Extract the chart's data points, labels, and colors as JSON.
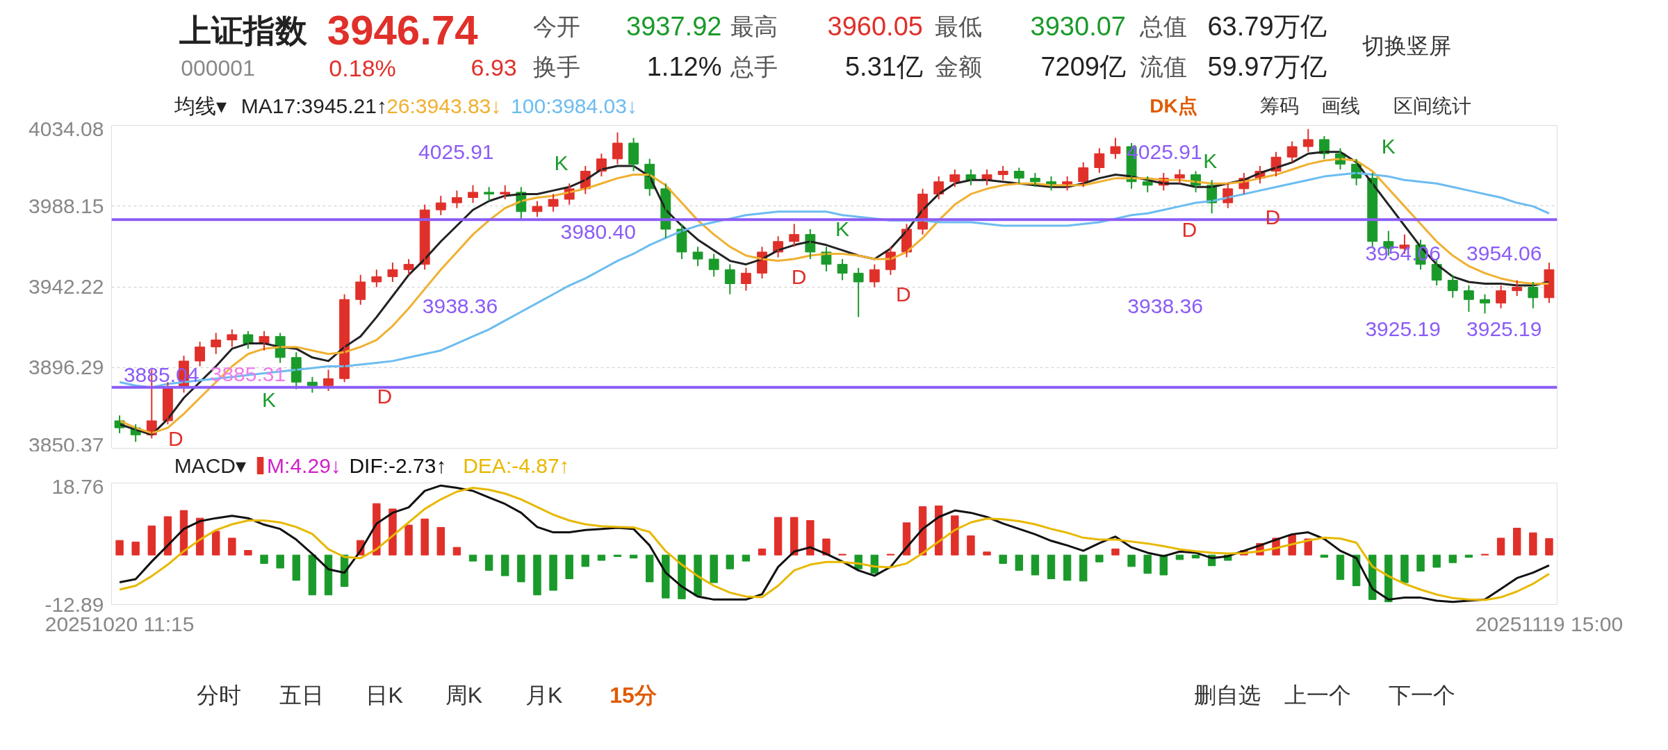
{
  "chart_data": [
    {
      "type": "other",
      "annotations": [
        "上证指数",
        "3946.74",
        "000001",
        "0.18%",
        "6.93",
        "今开",
        "3937.92",
        "最高",
        "3960.05",
        "最低",
        "3930.07",
        "总值",
        "63.79万亿",
        "换手",
        "1.12%",
        "总手",
        "5.31亿",
        "金额",
        "7209亿",
        "流值",
        "59.97万亿",
        "切换竖屏",
        "均线▾",
        "DK点",
        "筹码",
        "画线",
        "区间统计"
      ]
    },
    {
      "type": "candlestick",
      "categories": [
        null,
        null,
        null,
        null,
        null,
        null,
        null,
        null,
        null,
        null,
        null,
        null,
        null,
        null,
        null,
        null,
        null,
        null,
        null,
        null,
        null,
        null,
        null,
        null,
        null,
        null,
        null,
        null,
        null,
        null,
        null,
        null,
        null,
        null,
        null,
        null,
        null,
        null,
        null,
        null,
        null,
        null,
        null,
        null,
        null,
        null,
        null,
        null,
        null,
        null,
        null,
        null,
        null,
        null,
        null,
        null,
        null,
        null,
        null,
        null,
        null,
        null,
        null,
        null,
        null,
        null,
        null,
        null,
        null,
        null,
        null,
        null,
        null,
        null,
        null,
        null,
        null,
        null,
        null,
        null,
        null,
        null,
        null,
        null,
        null,
        null,
        null,
        null,
        null,
        null
      ],
      "ohlc": [
        [
          3866,
          3869,
          3859,
          3862
        ],
        [
          3862,
          3864,
          3854,
          3858
        ],
        [
          3858,
          3895,
          3856,
          3866
        ],
        [
          3866,
          3888,
          3864,
          3885
        ],
        [
          3885,
          3903,
          3882,
          3900
        ],
        [
          3900,
          3911,
          3897,
          3908
        ],
        [
          3908,
          3916,
          3904,
          3912
        ],
        [
          3912,
          3918,
          3908,
          3915
        ],
        [
          3915,
          3917,
          3907,
          3910
        ],
        [
          3910,
          3917,
          3906,
          3914
        ],
        [
          3914,
          3916,
          3899,
          3902
        ],
        [
          3902,
          3905,
          3884,
          3888
        ],
        [
          3888,
          3891,
          3882,
          3886
        ],
        [
          3886,
          3895,
          3883,
          3890
        ],
        [
          3890,
          3938,
          3888,
          3935
        ],
        [
          3935,
          3949,
          3932,
          3945
        ],
        [
          3945,
          3952,
          3942,
          3948
        ],
        [
          3948,
          3956,
          3945,
          3952
        ],
        [
          3952,
          3958,
          3949,
          3955
        ],
        [
          3955,
          3989,
          3952,
          3986
        ],
        [
          3986,
          3994,
          3983,
          3990
        ],
        [
          3990,
          3997,
          3987,
          3993
        ],
        [
          3993,
          4000,
          3990,
          3996
        ],
        [
          3996,
          3999,
          3991,
          3995
        ],
        [
          3995,
          4000,
          3992,
          3996
        ],
        [
          3996,
          3999,
          3980,
          3985
        ],
        [
          3985,
          3991,
          3982,
          3988
        ],
        [
          3988,
          3995,
          3985,
          3992
        ],
        [
          3992,
          4001,
          3989,
          3998
        ],
        [
          3998,
          4011,
          3995,
          4008
        ],
        [
          4008,
          4018,
          4005,
          4015
        ],
        [
          4015,
          4030,
          4012,
          4024
        ],
        [
          4024,
          4027,
          4008,
          4012
        ],
        [
          4012,
          4015,
          3994,
          3998
        ],
        [
          3998,
          4001,
          3970,
          3975
        ],
        [
          3975,
          3978,
          3958,
          3962
        ],
        [
          3962,
          3965,
          3954,
          3958
        ],
        [
          3958,
          3961,
          3948,
          3952
        ],
        [
          3952,
          3955,
          3938,
          3944
        ],
        [
          3944,
          3953,
          3940,
          3950
        ],
        [
          3950,
          3965,
          3947,
          3962
        ],
        [
          3962,
          3971,
          3959,
          3968
        ],
        [
          3968,
          3978,
          3965,
          3972
        ],
        [
          3972,
          3975,
          3958,
          3962
        ],
        [
          3962,
          3965,
          3951,
          3955
        ],
        [
          3955,
          3958,
          3946,
          3950
        ],
        [
          3950,
          3953,
          3925,
          3945
        ],
        [
          3945,
          3955,
          3942,
          3952
        ],
        [
          3952,
          3965,
          3949,
          3962
        ],
        [
          3962,
          3978,
          3959,
          3975
        ],
        [
          3975,
          3998,
          3972,
          3995
        ],
        [
          3995,
          4005,
          3992,
          4002
        ],
        [
          4002,
          4009,
          3999,
          4006
        ],
        [
          4006,
          4009,
          4000,
          4003
        ],
        [
          4003,
          4009,
          4000,
          4006
        ],
        [
          4006,
          4011,
          4003,
          4008
        ],
        [
          4008,
          4010,
          4001,
          4004
        ],
        [
          4004,
          4007,
          3999,
          4002
        ],
        [
          4002,
          4005,
          3997,
          4000
        ],
        [
          4000,
          4005,
          3997,
          4002
        ],
        [
          4002,
          4013,
          3999,
          4010
        ],
        [
          4010,
          4021,
          4007,
          4018
        ],
        [
          4018,
          4027,
          4015,
          4022
        ],
        [
          4022,
          4024,
          3998,
          4002
        ],
        [
          4002,
          4005,
          3996,
          4000
        ],
        [
          4000,
          4007,
          3997,
          4004
        ],
        [
          4004,
          4009,
          4001,
          4006
        ],
        [
          4006,
          4008,
          3996,
          4000
        ],
        [
          4000,
          4003,
          3984,
          3990
        ],
        [
          3990,
          4001,
          3987,
          3998
        ],
        [
          3998,
          4007,
          3995,
          4004
        ],
        [
          4004,
          4011,
          4001,
          4008
        ],
        [
          4008,
          4019,
          4005,
          4016
        ],
        [
          4016,
          4025,
          4013,
          4022
        ],
        [
          4022,
          4032,
          4019,
          4026
        ],
        [
          4026,
          4028,
          4015,
          4018
        ],
        [
          4018,
          4021,
          4009,
          4012
        ],
        [
          4012,
          4015,
          4000,
          4004
        ],
        [
          4004,
          4007,
          3965,
          3968
        ],
        [
          3968,
          3974,
          3960,
          3964
        ],
        [
          3964,
          3972,
          3961,
          3966
        ],
        [
          3966,
          3969,
          3952,
          3955
        ],
        [
          3955,
          3958,
          3943,
          3946
        ],
        [
          3946,
          3949,
          3936,
          3940
        ],
        [
          3940,
          3943,
          3928,
          3935
        ],
        [
          3935,
          3938,
          3927,
          3933
        ],
        [
          3933,
          3943,
          3930,
          3940
        ],
        [
          3940,
          3946,
          3937,
          3942
        ],
        [
          3942,
          3945,
          3930,
          3936
        ],
        [
          3936,
          3956,
          3933,
          3952
        ]
      ],
      "colors": [
        "#1a9a2a",
        "#1a9a2a",
        "#e0302a",
        "#e0302a",
        "#e0302a",
        "#e0302a",
        "#e0302a",
        "#e0302a",
        "#1a9a2a",
        "#e0302a",
        "#1a9a2a",
        "#1a9a2a",
        "#1a9a2a",
        "#e0302a",
        "#e0302a",
        "#e0302a",
        "#e0302a",
        "#e0302a",
        "#e0302a",
        "#e0302a",
        "#e0302a",
        "#e0302a",
        "#e0302a",
        "#1a9a2a",
        "#e0302a",
        "#1a9a2a",
        "#e0302a",
        "#e0302a",
        "#e0302a",
        "#e0302a",
        "#e0302a",
        "#e0302a",
        "#1a9a2a",
        "#1a9a2a",
        "#1a9a2a",
        "#1a9a2a",
        "#1a9a2a",
        "#1a9a2a",
        "#1a9a2a",
        "#e0302a",
        "#e0302a",
        "#e0302a",
        "#e0302a",
        "#1a9a2a",
        "#1a9a2a",
        "#1a9a2a",
        "#1a9a2a",
        "#e0302a",
        "#e0302a",
        "#e0302a",
        "#e0302a",
        "#e0302a",
        "#e0302a",
        "#1a9a2a",
        "#e0302a",
        "#e0302a",
        "#1a9a2a",
        "#1a9a2a",
        "#1a9a2a",
        "#e0302a",
        "#e0302a",
        "#e0302a",
        "#e0302a",
        "#1a9a2a",
        "#1a9a2a",
        "#e0302a",
        "#e0302a",
        "#1a9a2a",
        "#1a9a2a",
        "#e0302a",
        "#e0302a",
        "#e0302a",
        "#e0302a",
        "#e0302a",
        "#e0302a",
        "#1a9a2a",
        "#1a9a2a",
        "#1a9a2a",
        "#1a9a2a",
        "#1a9a2a",
        "#e0302a",
        "#1a9a2a",
        "#1a9a2a",
        "#1a9a2a",
        "#1a9a2a",
        "#1a9a2a",
        "#e0302a",
        "#e0302a",
        "#1a9a2a",
        "#e0302a"
      ],
      "series": [
        {
          "name": "MA17:3945.21↑",
          "type": "line",
          "color": "#222222",
          "values": [
            3864,
            3861,
            3858,
            3867,
            3879,
            3888,
            3897,
            3907,
            3910,
            3910,
            3908,
            3907,
            3902,
            3900,
            3908,
            3914,
            3925,
            3937,
            3949,
            3958,
            3968,
            3977,
            3986,
            3991,
            3994,
            3995,
            3995,
            3997,
            3999,
            4003,
            4009,
            4011,
            4011,
            4005,
            3986,
            3977,
            3969,
            3963,
            3957,
            3955,
            3958,
            3963,
            3966,
            3968,
            3966,
            3963,
            3960,
            3958,
            3964,
            3974,
            3986,
            3995,
            4001,
            4003,
            4003,
            4002,
            4001,
            4000,
            3999,
            3999,
            4001,
            4004,
            4006,
            4005,
            4003,
            4001,
            4001,
            3999,
            3999,
            4001,
            4003,
            4007,
            4010,
            4013,
            4018,
            4019,
            4019,
            4013,
            4001,
            3989,
            3977,
            3965,
            3955,
            3948,
            3945,
            3944,
            3944,
            3943,
            3943,
            3945
          ]
        },
        {
          "name": "26:3943.83↓",
          "type": "line",
          "color": "#f0b030",
          "values": [
            3866,
            3862,
            3859,
            3862,
            3870,
            3879,
            3888,
            3897,
            3904,
            3907,
            3908,
            3908,
            3906,
            3904,
            3905,
            3908,
            3912,
            3920,
            3930,
            3941,
            3952,
            3962,
            3972,
            3980,
            3987,
            3991,
            3993,
            3994,
            3996,
            3998,
            4001,
            4004,
            4006,
            4006,
            4000,
            3990,
            3980,
            3972,
            3965,
            3960,
            3958,
            3957,
            3958,
            3960,
            3961,
            3961,
            3960,
            3958,
            3958,
            3962,
            3970,
            3980,
            3989,
            3995,
            3998,
            4000,
            4001,
            4001,
            4000,
            4000,
            4000,
            4002,
            4004,
            4004,
            4004,
            4003,
            4003,
            4002,
            4001,
            4001,
            4002,
            4004,
            4006,
            4009,
            4012,
            4014,
            4015,
            4014,
            4008,
            3998,
            3988,
            3978,
            3968,
            3960,
            3954,
            3950,
            3947,
            3945,
            3944,
            3944
          ]
        },
        {
          "name": "100:3984.03↓",
          "type": "line",
          "color": "#6cbcf0",
          "values": [
            3888,
            3886,
            3885,
            3887,
            3888,
            3889,
            3890,
            3891,
            3892,
            3893,
            3894,
            3895,
            3896,
            3897,
            3897,
            3898,
            3899,
            3900,
            3902,
            3904,
            3906,
            3910,
            3914,
            3918,
            3923,
            3928,
            3933,
            3938,
            3943,
            3947,
            3952,
            3957,
            3961,
            3966,
            3970,
            3974,
            3977,
            3979,
            3981,
            3983,
            3984,
            3985,
            3985,
            3985,
            3985,
            3983,
            3982,
            3981,
            3980,
            3980,
            3980,
            3979,
            3979,
            3979,
            3978,
            3977,
            3977,
            3977,
            3977,
            3977,
            3978,
            3979,
            3981,
            3983,
            3984,
            3986,
            3988,
            3990,
            3991,
            3993,
            3995,
            3997,
            3999,
            4001,
            4003,
            4005,
            4006,
            4007,
            4006,
            4005,
            4003,
            4002,
            4001,
            3999,
            3997,
            3995,
            3993,
            3990,
            3988,
            3984
          ]
        }
      ],
      "ylim": [
        3850.37,
        4034.08
      ],
      "yticks": [
        3850.37,
        3896.29,
        3942.22,
        3988.15,
        4034.08
      ],
      "grid": "y",
      "legend": "top left",
      "tick_labels": "y",
      "ref_lines": [
        {
          "axis": "y",
          "value": 3980.4,
          "label": "3980.40",
          "color": "#8b5cf6"
        },
        {
          "axis": "y",
          "value": 3885.04,
          "label": "3885.04",
          "color": "#8b5cf6"
        }
      ],
      "annotations": [
        "4025.91",
        "3938.36",
        "4025.91",
        "3938.36",
        "3954.06",
        "3954.06",
        "3925.19",
        "3925.19",
        "3885.31",
        "D",
        "K",
        "D",
        "K",
        "D",
        "K",
        "D",
        "D",
        "K",
        "D",
        "K"
      ]
    },
    {
      "type": "line",
      "categories": [
        "20251020 11:15",
        null,
        null,
        null,
        null,
        null,
        null,
        null,
        null,
        null,
        null,
        null,
        null,
        null,
        null,
        null,
        null,
        null,
        null,
        null,
        null,
        null,
        null,
        null,
        null,
        null,
        null,
        null,
        null,
        null,
        null,
        null,
        null,
        null,
        null,
        null,
        null,
        null,
        null,
        null,
        null,
        null,
        null,
        null,
        null,
        null,
        null,
        null,
        null,
        null,
        null,
        null,
        null,
        null,
        null,
        null,
        null,
        null,
        null,
        null,
        null,
        null,
        null,
        null,
        null,
        null,
        null,
        null,
        null,
        null,
        null,
        null,
        null,
        null,
        null,
        null,
        null,
        null,
        null,
        null,
        null,
        null,
        null,
        null,
        null,
        null,
        null,
        null,
        null,
        "20251119 15:00"
      ],
      "series": [
        {
          "name": "M:4.29↓",
          "type": "bar",
          "values": [
            3.8,
            3.4,
            7.6,
            10,
            11.6,
            9.6,
            6.2,
            4.4,
            1.2,
            -2.2,
            -3.4,
            -6.6,
            -10.4,
            -10.4,
            -8.2,
            3.8,
            13.4,
            12,
            7.8,
            9.4,
            7.2,
            2,
            -1.6,
            -4,
            -5.4,
            -7,
            -10.4,
            -9.2,
            -6.2,
            -3,
            -1.4,
            -0.4,
            -0.8,
            -7,
            -11.2,
            -11.4,
            -10.6,
            -7.2,
            -3.6,
            -1.6,
            1.6,
            9.8,
            9.8,
            9,
            4.2,
            0.2,
            -3.6,
            -4.8,
            0.2,
            8.4,
            12.6,
            12.8,
            10.2,
            5,
            0.8,
            -2.2,
            -4,
            -5.2,
            -6.2,
            -6.6,
            -6.8,
            -1.8,
            1.6,
            -3,
            -4.8,
            -5.2,
            -1.2,
            -0.8,
            -2.8,
            -1.4,
            1.2,
            3,
            4.4,
            5.2,
            4.2,
            -0.6,
            -6.4,
            -8,
            -11.6,
            -12.2,
            -7.2,
            -4.2,
            -3.2,
            -2,
            -0.6,
            0.2,
            4.4,
            7,
            5.8,
            4.3
          ],
          "colors": [
            "#e0302a",
            "#e0302a",
            "#e0302a",
            "#e0302a",
            "#e0302a",
            "#e0302a",
            "#e0302a",
            "#e0302a",
            "#e0302a",
            "#1a9a2a",
            "#1a9a2a",
            "#1a9a2a",
            "#1a9a2a",
            "#1a9a2a",
            "#1a9a2a",
            "#e0302a",
            "#e0302a",
            "#e0302a",
            "#e0302a",
            "#e0302a",
            "#e0302a",
            "#e0302a",
            "#1a9a2a",
            "#1a9a2a",
            "#1a9a2a",
            "#1a9a2a",
            "#1a9a2a",
            "#1a9a2a",
            "#1a9a2a",
            "#1a9a2a",
            "#1a9a2a",
            "#1a9a2a",
            "#1a9a2a",
            "#1a9a2a",
            "#1a9a2a",
            "#1a9a2a",
            "#1a9a2a",
            "#1a9a2a",
            "#1a9a2a",
            "#1a9a2a",
            "#e0302a",
            "#e0302a",
            "#e0302a",
            "#e0302a",
            "#e0302a",
            "#e0302a",
            "#1a9a2a",
            "#1a9a2a",
            "#e0302a",
            "#e0302a",
            "#e0302a",
            "#e0302a",
            "#e0302a",
            "#e0302a",
            "#e0302a",
            "#1a9a2a",
            "#1a9a2a",
            "#1a9a2a",
            "#1a9a2a",
            "#1a9a2a",
            "#1a9a2a",
            "#1a9a2a",
            "#e0302a",
            "#1a9a2a",
            "#1a9a2a",
            "#1a9a2a",
            "#1a9a2a",
            "#1a9a2a",
            "#1a9a2a",
            "#1a9a2a",
            "#e0302a",
            "#e0302a",
            "#e0302a",
            "#e0302a",
            "#e0302a",
            "#1a9a2a",
            "#1a9a2a",
            "#1a9a2a",
            "#1a9a2a",
            "#1a9a2a",
            "#1a9a2a",
            "#1a9a2a",
            "#1a9a2a",
            "#1a9a2a",
            "#1a9a2a",
            "#e0302a",
            "#e0302a",
            "#e0302a",
            "#e0302a",
            "#e0302a"
          ]
        },
        {
          "name": "DIF:-2.73↑",
          "type": "line",
          "color": "#111111",
          "values": [
            -7.1,
            -6.3,
            -1.7,
            2.5,
            6.8,
            8.8,
            9.6,
            10.2,
            9.6,
            7.9,
            6.8,
            4.0,
            0.3,
            -3.7,
            -4.6,
            1.1,
            8.2,
            11.0,
            12.4,
            16.7,
            18.1,
            17.5,
            16.7,
            15.0,
            13.3,
            11.0,
            7.3,
            5.9,
            5.9,
            6.5,
            6.8,
            7.1,
            6.8,
            2.5,
            -4.6,
            -8.2,
            -10.8,
            -11.6,
            -11.6,
            -11.6,
            -10.2,
            -3.1,
            0.9,
            2.0,
            0.3,
            -1.7,
            -4.0,
            -5.4,
            -3.1,
            2.0,
            6.8,
            9.9,
            11.6,
            11.0,
            9.9,
            8.2,
            6.8,
            5.4,
            3.7,
            2.5,
            1.1,
            3.1,
            4.8,
            2.0,
            0.6,
            -0.3,
            0.9,
            0.6,
            -0.8,
            -0.3,
            1.1,
            2.5,
            4.0,
            5.4,
            5.9,
            4.2,
            1.1,
            -0.8,
            -8.8,
            -11.6,
            -11.1,
            -11.1,
            -11.9,
            -12.2,
            -11.9,
            -11.6,
            -8.8,
            -6.0,
            -4.6,
            -2.7
          ]
        },
        {
          "name": "DEA:-4.87↑",
          "type": "line",
          "color": "#e8b800",
          "values": [
            -9,
            -8,
            -5.5,
            -2.5,
            1,
            4,
            6.5,
            8,
            9,
            9,
            8.5,
            7.3,
            5.5,
            1.5,
            -0.5,
            -0.8,
            1.5,
            5,
            8.5,
            12,
            14.5,
            16.5,
            17.5,
            17,
            16,
            14.5,
            12.5,
            10.5,
            9,
            8,
            7.5,
            7.3,
            7.2,
            6,
            1,
            -2.5,
            -5.5,
            -8,
            -9.8,
            -10.8,
            -11,
            -8,
            -4,
            -2.5,
            -1.8,
            -1.8,
            -2.2,
            -3,
            -3.2,
            -2.2,
            0.5,
            3.5,
            6.5,
            8.5,
            9.5,
            9.3,
            8.8,
            8,
            6.8,
            5.8,
            4.5,
            4,
            4,
            3.5,
            3,
            2.3,
            1.5,
            1,
            0.6,
            0.4,
            0.5,
            1,
            1.8,
            2.8,
            3.8,
            4.5,
            4.3,
            3.2,
            -3,
            -5.5,
            -7.5,
            -9,
            -10.3,
            -11.2,
            -11.6,
            -11.7,
            -11,
            -9.5,
            -7.5,
            -4.9
          ]
        }
      ],
      "ylim": [
        -12.89,
        18.76
      ],
      "yticks": [
        -12.89,
        18.76
      ],
      "legend": "top left",
      "annotations": [
        "MACD▾"
      ]
    },
    {
      "type": "other",
      "annotations": [
        "分时",
        "五日",
        "日K",
        "周K",
        "月K",
        "15分",
        "删自选",
        "上一个",
        "下一个"
      ]
    }
  ]
}
